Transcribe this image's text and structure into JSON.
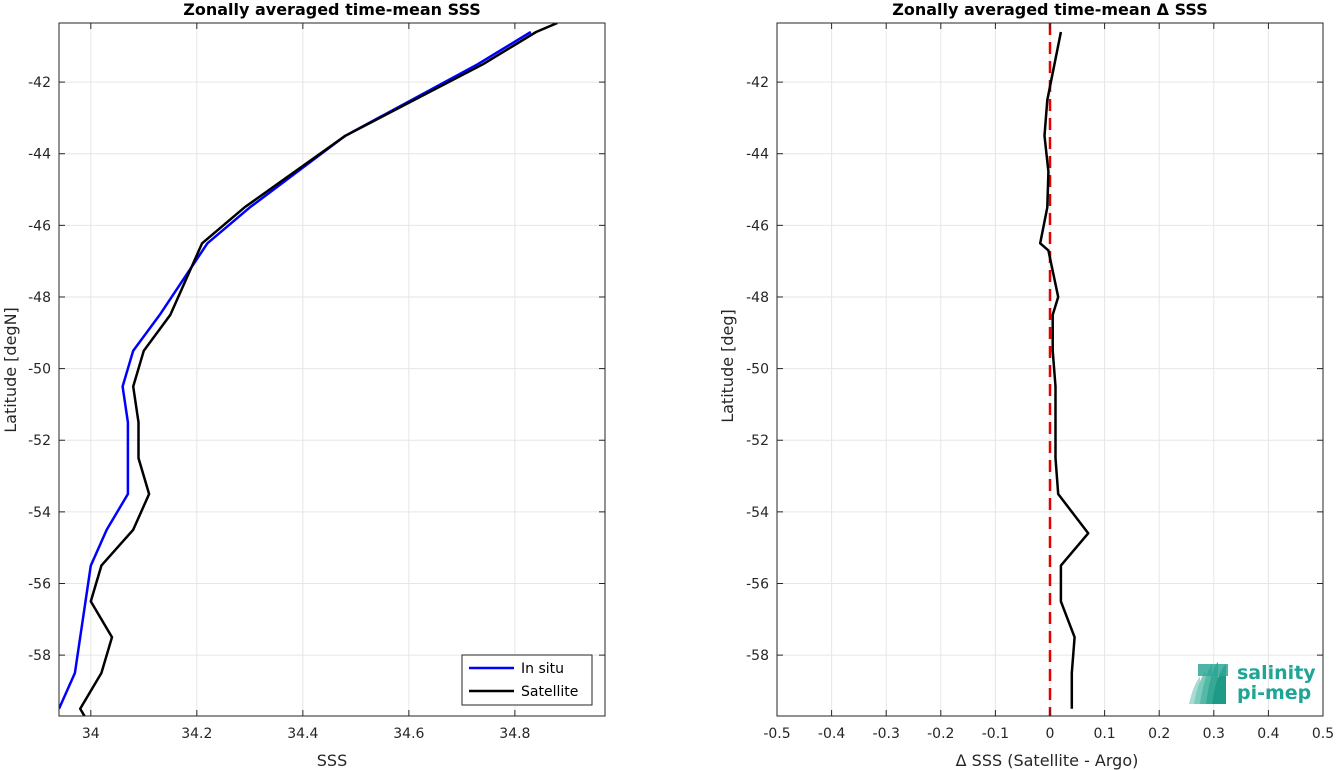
{
  "chart_data": [
    {
      "type": "line",
      "title": "Zonally averaged time-mean SSS",
      "xlabel": "SSS",
      "ylabel": "Latitude [degN]",
      "xlim": [
        33.94,
        34.97
      ],
      "ylim": [
        -59.7,
        -40.35
      ],
      "xticks": [
        34,
        34.2,
        34.4,
        34.6,
        34.8
      ],
      "xtick_labels": [
        "34",
        "34.2",
        "34.4",
        "34.6",
        "34.8"
      ],
      "yticks": [
        -58,
        -56,
        -54,
        -52,
        -50,
        -48,
        -46,
        -44,
        -42
      ],
      "ytick_labels": [
        "-58",
        "-56",
        "-54",
        "-52",
        "-50",
        "-48",
        "-46",
        "-44",
        "-42"
      ],
      "grid": true,
      "legend_position": "bottom-right",
      "series": [
        {
          "name": "In situ",
          "color": "#0000ff",
          "x": [
            33.94,
            33.97,
            33.98,
            33.99,
            34.0,
            34.03,
            34.07,
            34.07,
            34.07,
            34.06,
            34.08,
            34.13,
            34.22,
            34.3,
            34.48,
            34.73,
            34.83
          ],
          "y": [
            -59.5,
            -58.5,
            -57.5,
            -56.5,
            -55.5,
            -54.5,
            -53.5,
            -52.5,
            -51.5,
            -50.5,
            -49.5,
            -48.5,
            -46.5,
            -45.5,
            -43.5,
            -41.5,
            -40.6
          ]
        },
        {
          "name": "Satellite",
          "color": "#000000",
          "x": [
            34.0,
            33.98,
            34.02,
            34.04,
            34.0,
            34.02,
            34.08,
            34.11,
            34.09,
            34.09,
            34.08,
            34.1,
            34.15,
            34.21,
            34.29,
            34.48,
            34.74,
            34.84,
            34.88
          ],
          "y": [
            -60.0,
            -59.5,
            -58.5,
            -57.5,
            -56.5,
            -55.5,
            -54.5,
            -53.5,
            -52.5,
            -51.5,
            -50.5,
            -49.5,
            -48.5,
            -46.5,
            -45.5,
            -43.5,
            -41.5,
            -40.6,
            -40.35
          ]
        }
      ]
    },
    {
      "type": "line",
      "title": "Zonally averaged time-mean Δ SSS",
      "xlabel": "Δ SSS (Satellite - Argo)",
      "ylabel": "Latitude [deg]",
      "xlim": [
        -0.5,
        0.5
      ],
      "ylim": [
        -59.7,
        -40.35
      ],
      "xticks": [
        -0.5,
        -0.4,
        -0.3,
        -0.2,
        -0.1,
        0,
        0.1,
        0.2,
        0.3,
        0.4,
        0.5
      ],
      "xtick_labels": [
        "-0.5",
        "-0.4",
        "-0.3",
        "-0.2",
        "-0.1",
        "0",
        "0.1",
        "0.2",
        "0.3",
        "0.4",
        "0.5"
      ],
      "yticks": [
        -58,
        -56,
        -54,
        -52,
        -50,
        -48,
        -46,
        -44,
        -42
      ],
      "ytick_labels": [
        "-58",
        "-56",
        "-54",
        "-52",
        "-50",
        "-48",
        "-46",
        "-44",
        "-42"
      ],
      "grid": true,
      "reference_line": {
        "x": 0,
        "color": "#e60000",
        "style": "dashed"
      },
      "series": [
        {
          "color": "#000000",
          "x": [
            0.04,
            0.04,
            0.045,
            0.02,
            0.02,
            0.07,
            0.015,
            0.01,
            0.01,
            0.01,
            0.005,
            0.005,
            0.015,
            -0.003,
            -0.018,
            -0.005,
            -0.003,
            -0.01,
            -0.005,
            0.02
          ],
          "y": [
            -59.5,
            -58.5,
            -57.5,
            -56.5,
            -55.5,
            -54.6,
            -53.5,
            -52.5,
            -51.5,
            -50.5,
            -49.5,
            -48.5,
            -48.0,
            -46.7,
            -46.5,
            -45.5,
            -44.5,
            -43.5,
            -42.5,
            -40.6
          ]
        }
      ]
    }
  ],
  "legend": {
    "entries": [
      "In situ",
      "Satellite"
    ]
  },
  "logo": {
    "line1": "salinity",
    "line2": "pi-mep"
  }
}
